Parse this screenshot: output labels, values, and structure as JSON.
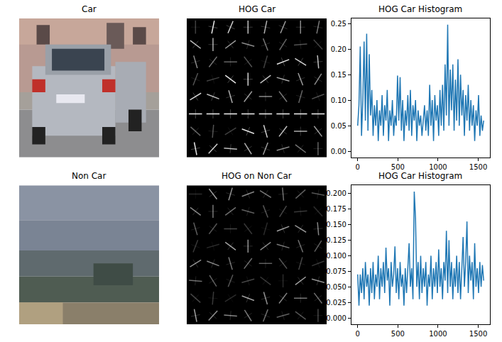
{
  "chart_data": [
    {
      "type": "image",
      "title": "Car",
      "tick_labels": false
    },
    {
      "type": "image",
      "title": "HOG Car",
      "tick_labels": false
    },
    {
      "type": "line",
      "title": "HOG Car Histogram",
      "color": "#1f77b4",
      "x": [
        0,
        16,
        32,
        48,
        64,
        80,
        96,
        112,
        128,
        144,
        160,
        176,
        192,
        208,
        224,
        240,
        256,
        272,
        288,
        304,
        320,
        336,
        352,
        368,
        384,
        400,
        416,
        432,
        448,
        464,
        480,
        496,
        512,
        528,
        544,
        560,
        576,
        592,
        608,
        624,
        640,
        656,
        672,
        688,
        704,
        720,
        736,
        752,
        768,
        784,
        800,
        816,
        832,
        848,
        864,
        880,
        896,
        912,
        928,
        944,
        960,
        976,
        992,
        1008,
        1024,
        1040,
        1056,
        1072,
        1088,
        1104,
        1120,
        1136,
        1152,
        1168,
        1184,
        1200,
        1216,
        1232,
        1248,
        1264,
        1280,
        1296,
        1312,
        1328,
        1344,
        1360,
        1376,
        1392,
        1408,
        1424,
        1440,
        1456,
        1472,
        1488,
        1504,
        1520,
        1536,
        1552,
        1568
      ],
      "values": [
        0.05,
        0.09,
        0.205,
        0.03,
        0.1,
        0.215,
        0.06,
        0.23,
        0.04,
        0.19,
        0.07,
        0.12,
        0.03,
        0.09,
        0.05,
        0.1,
        0.02,
        0.08,
        0.05,
        0.11,
        0.03,
        0.09,
        0.06,
        0.12,
        0.02,
        0.08,
        0.05,
        0.1,
        0.03,
        0.07,
        0.05,
        0.148,
        0.06,
        0.145,
        0.04,
        0.1,
        0.02,
        0.08,
        0.05,
        0.11,
        0.04,
        0.12,
        0.03,
        0.09,
        0.06,
        0.1,
        0.02,
        0.08,
        0.05,
        0.07,
        0.03,
        0.06,
        0.09,
        0.04,
        0.08,
        0.03,
        0.13,
        0.05,
        0.1,
        0.02,
        0.11,
        0.06,
        0.09,
        0.03,
        0.12,
        0.05,
        0.13,
        0.04,
        0.17,
        0.07,
        0.248,
        0.05,
        0.16,
        0.08,
        0.17,
        0.04,
        0.14,
        0.06,
        0.18,
        0.05,
        0.15,
        0.07,
        0.12,
        0.03,
        0.11,
        0.06,
        0.13,
        0.04,
        0.1,
        0.05,
        0.09,
        0.02,
        0.08,
        0.05,
        0.11,
        0.03,
        0.07,
        0.04,
        0.06
      ],
      "xlim": [
        -78,
        1646
      ],
      "ylim": [
        -0.012,
        0.26
      ],
      "xticks": [
        0,
        500,
        1000,
        1500
      ],
      "yticks": [
        {
          "value": 0,
          "label": "0.00"
        },
        {
          "value": 0.05,
          "label": "0.05"
        },
        {
          "value": 0.1,
          "label": "0.10"
        },
        {
          "value": 0.15,
          "label": "0.15"
        },
        {
          "value": 0.2,
          "label": "0.20"
        },
        {
          "value": 0.25,
          "label": "0.25"
        }
      ],
      "grid": false
    },
    {
      "type": "image",
      "title": "Non Car",
      "tick_labels": false
    },
    {
      "type": "image",
      "title": "HOG on Non Car",
      "tick_labels": false
    },
    {
      "type": "line",
      "title": "HOG Car Histogram",
      "color": "#1f77b4",
      "x": [
        0,
        16,
        32,
        48,
        64,
        80,
        96,
        112,
        128,
        144,
        160,
        176,
        192,
        208,
        224,
        240,
        256,
        272,
        288,
        304,
        320,
        336,
        352,
        368,
        384,
        400,
        416,
        432,
        448,
        464,
        480,
        496,
        512,
        528,
        544,
        560,
        576,
        592,
        608,
        624,
        640,
        656,
        672,
        688,
        704,
        720,
        736,
        752,
        768,
        784,
        800,
        816,
        832,
        848,
        864,
        880,
        896,
        912,
        928,
        944,
        960,
        976,
        992,
        1008,
        1024,
        1040,
        1056,
        1072,
        1088,
        1104,
        1120,
        1136,
        1152,
        1168,
        1184,
        1200,
        1216,
        1232,
        1248,
        1264,
        1280,
        1296,
        1312,
        1328,
        1344,
        1360,
        1376,
        1392,
        1408,
        1424,
        1440,
        1456,
        1472,
        1488,
        1504,
        1520,
        1536,
        1552,
        1568
      ],
      "values": [
        0.07,
        0.02,
        0.07,
        0.04,
        0.08,
        0.03,
        0.09,
        0.05,
        0.07,
        0.02,
        0.08,
        0.04,
        0.09,
        0.03,
        0.07,
        0.05,
        0.1,
        0.03,
        0.08,
        0.05,
        0.09,
        0.04,
        0.113,
        0.06,
        0.08,
        0.02,
        0.09,
        0.05,
        0.07,
        0.115,
        0.04,
        0.08,
        0.03,
        0.09,
        0.05,
        0.07,
        0.02,
        0.08,
        0.04,
        0.09,
        0.12,
        0.05,
        0.08,
        0.03,
        0.203,
        0.16,
        0.05,
        0.09,
        0.03,
        0.1,
        0.04,
        0.08,
        0.05,
        0.09,
        0.02,
        0.07,
        0.05,
        0.1,
        0.03,
        0.08,
        0.05,
        0.09,
        0.04,
        0.11,
        0.05,
        0.08,
        0.03,
        0.09,
        0.06,
        0.14,
        0.04,
        0.125,
        0.05,
        0.09,
        0.03,
        0.08,
        0.05,
        0.1,
        0.04,
        0.09,
        0.03,
        0.08,
        0.13,
        0.05,
        0.09,
        0.155,
        0.04,
        0.1,
        0.06,
        0.09,
        0.03,
        0.12,
        0.05,
        0.08,
        0.04,
        0.09,
        0.05,
        0.085,
        0.06
      ],
      "xlim": [
        -78,
        1646
      ],
      "ylim": [
        -0.01,
        0.213
      ],
      "xticks": [
        0,
        500,
        1000,
        1500
      ],
      "yticks": [
        {
          "value": 0,
          "label": "0.000"
        },
        {
          "value": 0.025,
          "label": "0.025"
        },
        {
          "value": 0.05,
          "label": "0.050"
        },
        {
          "value": 0.075,
          "label": "0.075"
        },
        {
          "value": 0.1,
          "label": "0.100"
        },
        {
          "value": 0.125,
          "label": "0.125"
        },
        {
          "value": 0.15,
          "label": "0.150"
        },
        {
          "value": 0.175,
          "label": "0.175"
        },
        {
          "value": 0.2,
          "label": "0.200"
        }
      ],
      "grid": false
    }
  ]
}
